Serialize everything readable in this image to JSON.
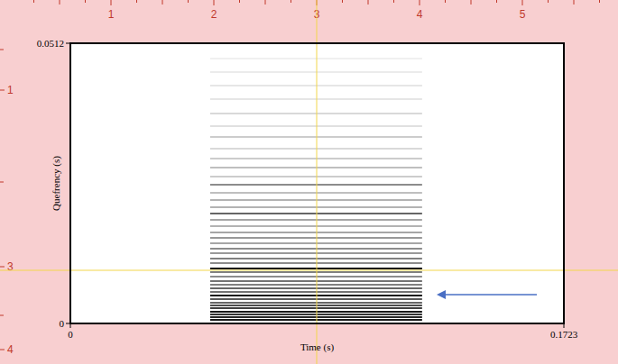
{
  "chart_data": {
    "type": "cepstrogram",
    "x_label": "Time (s)",
    "y_label": "Quefrency (s)",
    "xlim": [
      0,
      0.1723
    ],
    "xticks": [
      0,
      0.1723
    ],
    "ylim": [
      0,
      0.0512
    ],
    "yticks": [
      0,
      0.0512
    ],
    "time_range": [
      0.0488,
      0.1228
    ],
    "bands": [
      {
        "quefrency": 0.00066,
        "intensity": 0.9
      },
      {
        "quefrency": 0.00115,
        "intensity": 0.85
      },
      {
        "quefrency": 0.00165,
        "intensity": 0.8
      },
      {
        "quefrency": 0.00214,
        "intensity": 0.9
      },
      {
        "quefrency": 0.0028,
        "intensity": 0.75
      },
      {
        "quefrency": 0.00329,
        "intensity": 0.7
      },
      {
        "quefrency": 0.00379,
        "intensity": 0.6
      },
      {
        "quefrency": 0.00444,
        "intensity": 0.65
      },
      {
        "quefrency": 0.0051,
        "intensity": 0.95
      },
      {
        "quefrency": 0.00576,
        "intensity": 0.55
      },
      {
        "quefrency": 0.00642,
        "intensity": 0.6
      },
      {
        "quefrency": 0.00708,
        "intensity": 0.5
      },
      {
        "quefrency": 0.00774,
        "intensity": 0.55
      },
      {
        "quefrency": 0.00856,
        "intensity": 0.45
      },
      {
        "quefrency": 0.00938,
        "intensity": 0.5
      },
      {
        "quefrency": 0.01004,
        "intensity": 0.95
      },
      {
        "quefrency": 0.01103,
        "intensity": 0.45
      },
      {
        "quefrency": 0.01185,
        "intensity": 0.5
      },
      {
        "quefrency": 0.01284,
        "intensity": 0.4
      },
      {
        "quefrency": 0.01366,
        "intensity": 0.45
      },
      {
        "quefrency": 0.01465,
        "intensity": 0.35
      },
      {
        "quefrency": 0.01564,
        "intensity": 0.4
      },
      {
        "quefrency": 0.01662,
        "intensity": 0.35
      },
      {
        "quefrency": 0.01778,
        "intensity": 0.3
      },
      {
        "quefrency": 0.01893,
        "intensity": 0.35
      },
      {
        "quefrency": 0.02008,
        "intensity": 0.6
      },
      {
        "quefrency": 0.02123,
        "intensity": 0.3
      },
      {
        "quefrency": 0.02255,
        "intensity": 0.3
      },
      {
        "quefrency": 0.02387,
        "intensity": 0.25
      },
      {
        "quefrency": 0.02535,
        "intensity": 0.45
      },
      {
        "quefrency": 0.02683,
        "intensity": 0.2
      },
      {
        "quefrency": 0.02848,
        "intensity": 0.25
      },
      {
        "quefrency": 0.03012,
        "intensity": 0.2
      },
      {
        "quefrency": 0.03193,
        "intensity": 0.15
      },
      {
        "quefrency": 0.03407,
        "intensity": 0.2
      },
      {
        "quefrency": 0.03605,
        "intensity": 0.12
      },
      {
        "quefrency": 0.03835,
        "intensity": 0.15
      },
      {
        "quefrency": 0.04098,
        "intensity": 0.1
      },
      {
        "quefrency": 0.04345,
        "intensity": 0.1
      },
      {
        "quefrency": 0.04592,
        "intensity": 0.08
      },
      {
        "quefrency": 0.04839,
        "intensity": 0.06
      }
    ]
  },
  "ruler": {
    "top": [
      "1",
      "2",
      "3",
      "4",
      "5"
    ],
    "left": [
      "1",
      "3",
      "4"
    ]
  }
}
